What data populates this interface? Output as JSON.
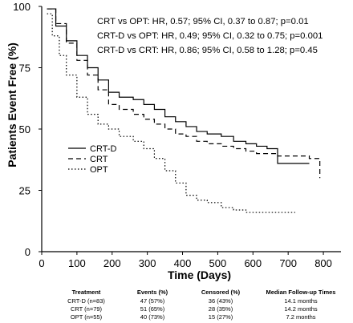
{
  "chart_data": {
    "type": "line",
    "title": "",
    "xlabel": "Time (Days)",
    "ylabel": "Patients Event Free (%)",
    "xlim": [
      0,
      850
    ],
    "ylim": [
      0,
      100
    ],
    "xticks": [
      0,
      100,
      200,
      300,
      400,
      500,
      600,
      700,
      800
    ],
    "yticks": [
      100,
      75,
      50,
      25,
      0
    ],
    "legend_position": "left",
    "annotations": [
      "CRT vs OPT: HR, 0.57; 95% CI, 0.37 to 0.87; p=0.01",
      "CRT-D vs OPT: HR, 0.49; 95% CI, 0.32 to 0.75; p=0.001",
      "CRT-D vs CRT: HR, 0.86; 95% CI, 0.58 to 1.28; p=0.45"
    ],
    "series": [
      {
        "name": "CRT-D",
        "style": "solid",
        "x": [
          15,
          40,
          70,
          100,
          130,
          160,
          190,
          220,
          260,
          290,
          320,
          350,
          380,
          410,
          440,
          470,
          510,
          545,
          580,
          610,
          640,
          670,
          700,
          760
        ],
        "values": [
          99,
          92,
          86,
          80,
          75,
          70,
          65,
          63,
          62,
          60,
          58,
          55,
          53,
          51,
          49,
          48,
          47,
          45,
          44,
          43,
          42,
          36,
          36,
          36
        ]
      },
      {
        "name": "CRT",
        "style": "dashed",
        "x": [
          15,
          40,
          70,
          100,
          130,
          160,
          190,
          220,
          260,
          290,
          320,
          350,
          380,
          410,
          440,
          470,
          510,
          545,
          580,
          610,
          640,
          670,
          700,
          760,
          790
        ],
        "values": [
          99,
          93,
          85,
          78,
          72,
          66,
          60,
          58,
          56,
          54,
          52,
          50,
          48,
          47,
          45,
          44,
          43,
          42,
          41,
          40,
          40,
          39,
          39,
          38,
          30
        ]
      },
      {
        "name": "OPT",
        "style": "dotted",
        "x": [
          15,
          30,
          50,
          70,
          100,
          130,
          160,
          190,
          220,
          260,
          290,
          320,
          350,
          380,
          410,
          440,
          470,
          510,
          545,
          580,
          640,
          700,
          720
        ],
        "values": [
          97,
          88,
          80,
          72,
          63,
          56,
          52,
          50,
          47,
          45,
          42,
          38,
          33,
          28,
          23,
          21,
          20,
          18,
          17,
          16,
          16,
          16,
          16
        ]
      }
    ]
  },
  "table": {
    "headers": [
      "Treatment",
      "Events (%)",
      "Censored (%)",
      "Median Follow-up Times"
    ],
    "rows": [
      [
        "CRT-D (n=83)",
        "47 (57%)",
        "36 (43%)",
        "14.1 months"
      ],
      [
        "CRT (n=79)",
        "51 (65%)",
        "28 (35%)",
        "14.2 months"
      ],
      [
        "OPT (n=55)",
        "40 (73%)",
        "15 (27%)",
        "7.2 months"
      ]
    ]
  }
}
